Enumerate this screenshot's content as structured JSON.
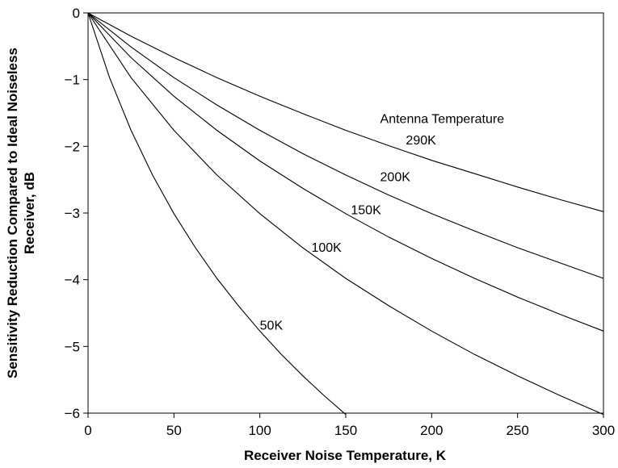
{
  "chart_data": {
    "type": "line",
    "title": "",
    "xlabel": "Receiver Noise Temperature, K",
    "ylabel_lines": [
      "Sensitivity Reduction Compared to Ideal Noiseless",
      "Receiver, dB"
    ],
    "xlim": [
      0,
      300
    ],
    "ylim": [
      -6,
      0
    ],
    "xticks": [
      0,
      50,
      100,
      150,
      200,
      250,
      300
    ],
    "yticks": [
      0,
      -1,
      -2,
      -3,
      -4,
      -5,
      -6
    ],
    "xtick_labels": [
      "0",
      "50",
      "100",
      "150",
      "200",
      "250",
      "300"
    ],
    "ytick_labels": [
      "0",
      "−1",
      "−2",
      "−3",
      "−4",
      "−5",
      "−6"
    ],
    "grid": false,
    "legend_title": "Antenna Temperature",
    "series": [
      {
        "name": "290K",
        "x": [
          0,
          25,
          50,
          75,
          100,
          125,
          150,
          175,
          200,
          225,
          250,
          275,
          300
        ],
        "y": [
          0,
          -0.35,
          -0.67,
          -0.97,
          -1.25,
          -1.51,
          -1.76,
          -1.99,
          -2.21,
          -2.41,
          -2.61,
          -2.8,
          -2.98
        ]
      },
      {
        "name": "200K",
        "x": [
          0,
          25,
          50,
          75,
          100,
          125,
          150,
          175,
          200,
          225,
          250,
          275,
          300
        ],
        "y": [
          0,
          -0.51,
          -0.97,
          -1.38,
          -1.76,
          -2.11,
          -2.43,
          -2.73,
          -3.01,
          -3.27,
          -3.52,
          -3.75,
          -3.98
        ]
      },
      {
        "name": "150K",
        "x": [
          0,
          25,
          50,
          75,
          100,
          125,
          150,
          175,
          200,
          225,
          250,
          275,
          300
        ],
        "y": [
          0,
          -0.67,
          -1.25,
          -1.76,
          -2.22,
          -2.63,
          -3.01,
          -3.36,
          -3.68,
          -3.98,
          -4.26,
          -4.52,
          -4.77
        ]
      },
      {
        "name": "100K",
        "x": [
          0,
          25,
          50,
          75,
          100,
          125,
          150,
          175,
          200,
          225,
          250,
          275,
          300
        ],
        "y": [
          0,
          -0.97,
          -1.76,
          -2.43,
          -3.01,
          -3.52,
          -3.98,
          -4.39,
          -4.77,
          -5.12,
          -5.44,
          -5.74,
          -6.02
        ]
      },
      {
        "name": "50K",
        "x": [
          0,
          12.5,
          25,
          37.5,
          50,
          62.5,
          75,
          87.5,
          100,
          112.5,
          125,
          137.5,
          150
        ],
        "y": [
          0,
          -0.97,
          -1.76,
          -2.43,
          -3.01,
          -3.52,
          -3.98,
          -4.39,
          -4.77,
          -5.12,
          -5.44,
          -5.74,
          -6.02
        ]
      }
    ],
    "curve_labels": [
      {
        "text": "290K",
        "x": 185,
        "y": -1.97
      },
      {
        "text": "200K",
        "x": 170,
        "y": -2.52
      },
      {
        "text": "150K",
        "x": 153,
        "y": -3.02
      },
      {
        "text": "100K",
        "x": 130,
        "y": -3.58
      },
      {
        "text": "50K",
        "x": 100,
        "y": -4.75
      }
    ],
    "legend_title_pos": {
      "x": 170,
      "y": -1.65
    }
  }
}
